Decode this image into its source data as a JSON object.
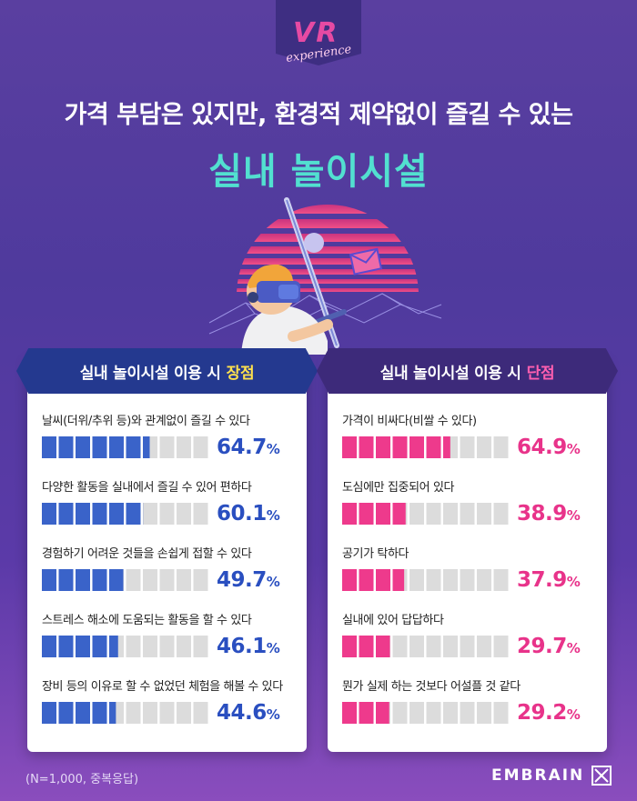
{
  "logo": {
    "main": "VR",
    "script": "experience"
  },
  "headline": "가격 부담은 있지만, 환경적 제약없이 즐길 수 있는",
  "headline_accent": "실내 놀이시설",
  "pros": {
    "title_prefix": "실내 놀이시설 이용 시",
    "title_highlight": "장점"
  },
  "cons": {
    "title_prefix": "실내 놀이시설 이용 시",
    "title_highlight": "단점"
  },
  "footnote": "(N=1,000, 중복응답)",
  "brand": "EMBRAIN",
  "unit": "%",
  "colors": {
    "pros_bar": "#3a63c9",
    "cons_bar": "#ee3a8c",
    "empty_bar": "#dcdcdc"
  },
  "chart_data": [
    {
      "type": "bar",
      "categories": [
        "날씨(더위/추위 등)와 관계없이 즐길 수 있다",
        "다양한 활동을 실내에서 즐길 수 있어 편하다",
        "경험하기 어려운 것들을 손쉽게 접할 수 있다",
        "스트레스 해소에 도움되는 활동을 할 수 있다",
        "장비 등의 이유로 할 수 없었던 체험을 해볼 수 있다"
      ],
      "values": [
        64.7,
        60.1,
        49.7,
        46.1,
        44.6
      ],
      "value_labels": [
        "64.7",
        "60.1",
        "49.7",
        "46.1",
        "44.6"
      ],
      "ylim": [
        0,
        100
      ]
    },
    {
      "type": "bar",
      "categories": [
        "가격이 비싸다(비쌀 수 있다)",
        "도심에만 집중되어 있다",
        "공기가 탁하다",
        "실내에 있어 답답하다",
        "뭔가 실제 하는 것보다 어설플 것 같다"
      ],
      "values": [
        64.9,
        38.9,
        37.9,
        29.7,
        29.2
      ],
      "value_labels": [
        "64.9",
        "38.9",
        "37.9",
        "29.7",
        "29.2"
      ],
      "ylim": [
        0,
        100
      ]
    }
  ]
}
